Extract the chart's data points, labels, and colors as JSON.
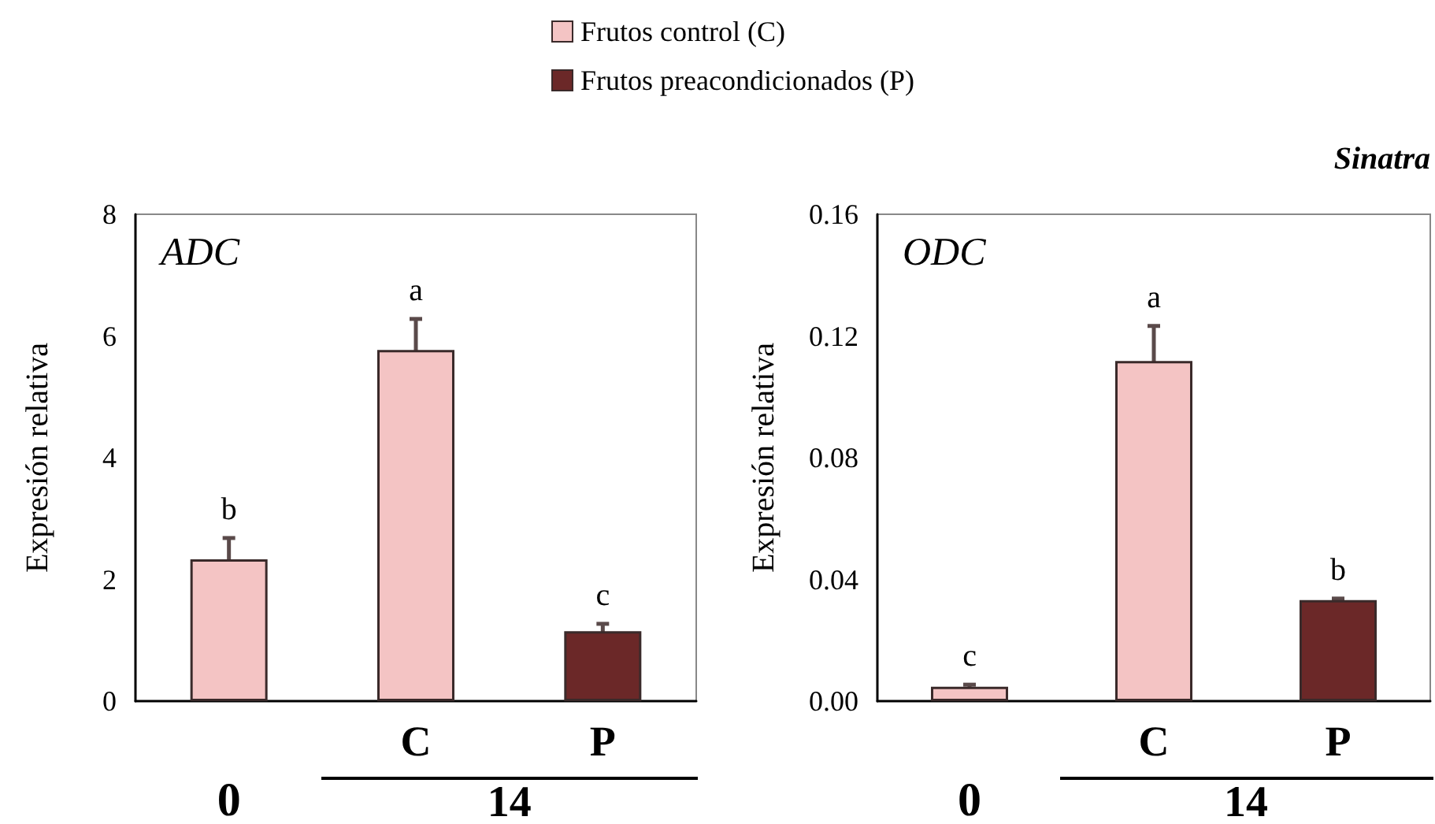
{
  "chart_data": [
    {
      "type": "bar",
      "title": "ADC",
      "ylabel": "Expresión relativa",
      "categories": [
        "0",
        "C",
        "P"
      ],
      "ylim": [
        0,
        8
      ],
      "yticks": [
        0,
        2,
        4,
        6,
        8
      ],
      "grid": false,
      "legend": "top",
      "series": [
        {
          "name": "Frutos control (C)",
          "color": "#f4c4c4",
          "values": [
            2.33,
            5.77,
            null
          ],
          "errors": [
            0.35,
            0.51,
            null
          ]
        },
        {
          "name": "Frutos preacondicionados (P)",
          "color": "#6b2828",
          "values": [
            null,
            null,
            1.15
          ],
          "errors": [
            null,
            null,
            0.12
          ]
        }
      ],
      "annotations": [
        "14",
        {
          "text": "b",
          "x": "0",
          "y": 2.68
        },
        {
          "text": "a",
          "x": "C",
          "y": 6.28
        },
        {
          "text": "c",
          "x": "P",
          "y": 1.27
        }
      ]
    },
    {
      "type": "bar",
      "title": "ODC",
      "ylabel": "Expresión relativa",
      "categories": [
        "0",
        "C",
        "P"
      ],
      "ylim": [
        0,
        0.16
      ],
      "yticks": [
        {
          "value": 0,
          "label": "0.00"
        },
        0.04,
        0.08,
        0.12,
        0.16
      ],
      "grid": false,
      "series": [
        {
          "color": "#f4c4c4",
          "values": [
            0.0047,
            0.1118,
            null
          ],
          "errors": [
            0.0007,
            0.0115,
            null
          ]
        },
        {
          "color": "#6b2828",
          "values": [
            null,
            null,
            0.0332
          ],
          "errors": [
            null,
            null,
            0.0005
          ]
        }
      ],
      "annotations": [
        "Sinatra",
        "14",
        {
          "text": "c",
          "x": "0",
          "y": 0.0054
        },
        {
          "text": "a",
          "x": "C",
          "y": 0.1233
        },
        {
          "text": "b",
          "x": "P",
          "y": 0.0337
        }
      ]
    }
  ]
}
